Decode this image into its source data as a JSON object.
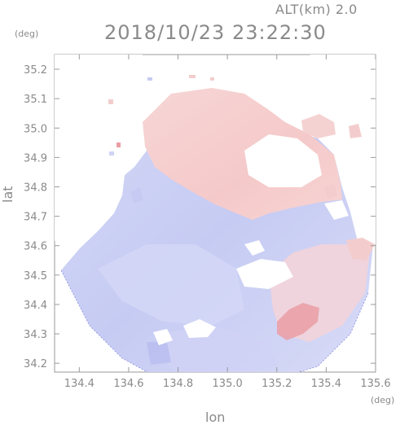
{
  "header": {
    "altitude_label": "ALT(km) 2.0",
    "datetime": "2018/10/23 23:22:30"
  },
  "axes": {
    "y_unit": "(deg)",
    "x_unit": "(deg)",
    "xlabel": "lon",
    "ylabel": "lat",
    "x_ticks": [
      "134.4",
      "134.6",
      "134.8",
      "135.0",
      "135.2",
      "135.4",
      "135.6"
    ],
    "y_ticks": [
      "35.2",
      "35.1",
      "35.0",
      "34.9",
      "34.8",
      "34.7",
      "34.6",
      "34.5",
      "34.4",
      "34.3",
      "34.2"
    ]
  },
  "chart_data": {
    "type": "heatmap",
    "title": "2018/10/23 23:22:30",
    "xlabel": "lon",
    "ylabel": "lat",
    "xlim": [
      134.3,
      135.6
    ],
    "ylim": [
      34.17,
      35.25
    ],
    "x_ticks": [
      134.4,
      134.6,
      134.8,
      135.0,
      135.2,
      135.4,
      135.6
    ],
    "y_ticks": [
      35.2,
      35.1,
      35.0,
      34.9,
      34.8,
      34.7,
      34.6,
      34.5,
      34.4,
      34.3,
      34.2
    ],
    "colors": {
      "approaching": "#c8ccf4",
      "receding": "#f6caca",
      "strong_receding": "#e89aa0",
      "strong_approaching": "#9aa2e8"
    },
    "grid": false
  }
}
